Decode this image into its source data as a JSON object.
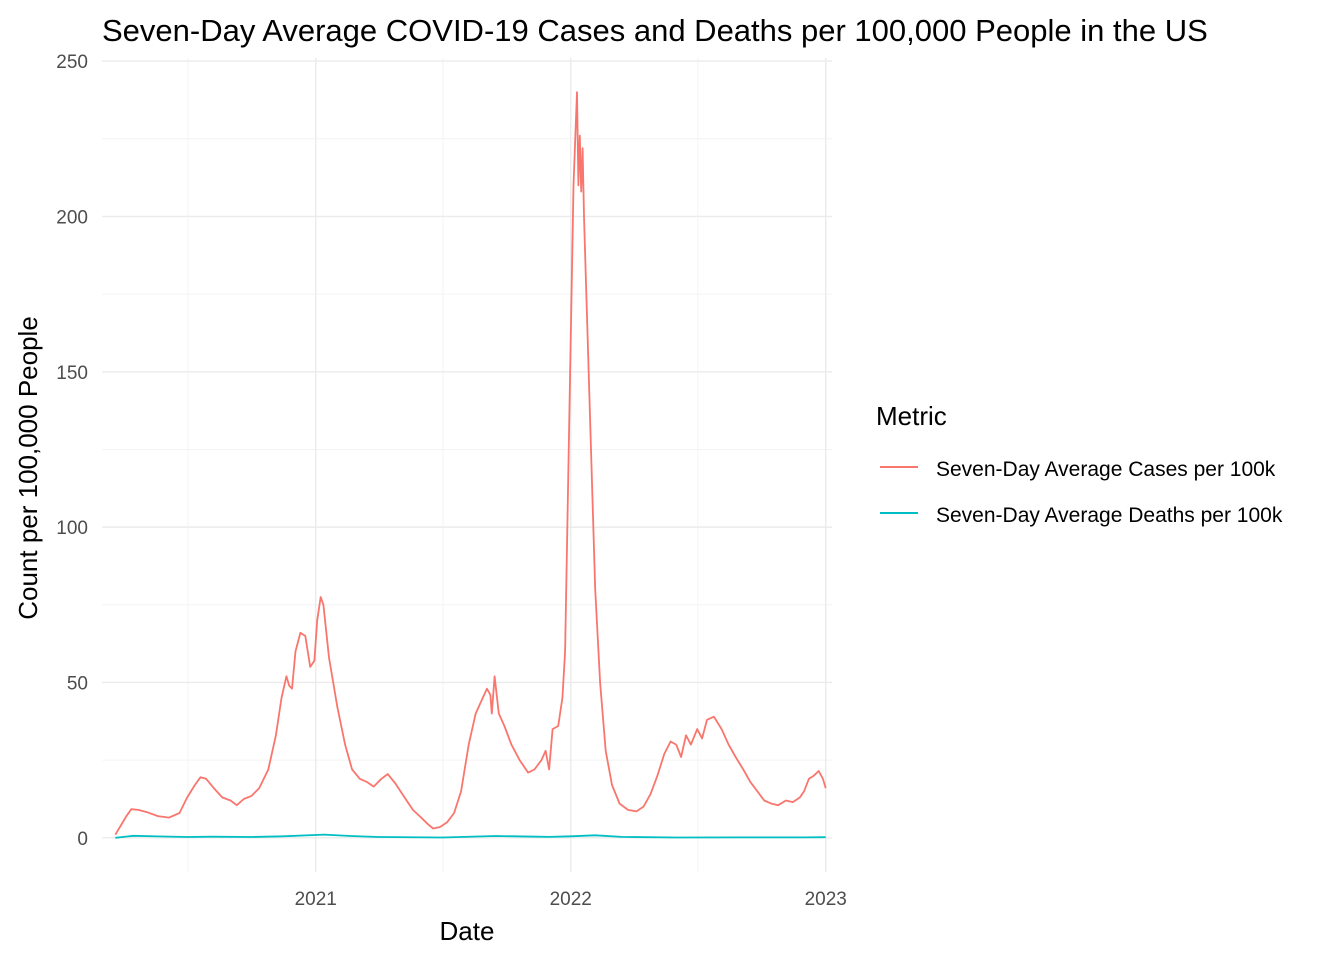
{
  "chart_data": {
    "type": "line",
    "title": "Seven-Day Average COVID-19 Cases and Deaths per 100,000 People in the US",
    "xlabel": "Date",
    "ylabel": "Count per 100,000 People",
    "x_ticks": [
      "2021",
      "2022",
      "2023"
    ],
    "y_ticks": [
      "0",
      "50",
      "100",
      "150",
      "200",
      "250"
    ],
    "xlim": [
      "2020-03-01",
      "2023-01-10"
    ],
    "ylim": [
      -11,
      251
    ],
    "grid": true,
    "legend": {
      "title": "Metric",
      "position": "right"
    },
    "series": [
      {
        "name": "Seven-Day Average Cases per 100k",
        "color": "#F8766D",
        "points": [
          [
            "2020-03-20",
            1
          ],
          [
            "2020-03-28",
            4
          ],
          [
            "2020-04-05",
            7
          ],
          [
            "2020-04-12",
            9.2
          ],
          [
            "2020-04-22",
            9
          ],
          [
            "2020-05-05",
            8.2
          ],
          [
            "2020-05-20",
            7
          ],
          [
            "2020-06-05",
            6.5
          ],
          [
            "2020-06-20",
            8
          ],
          [
            "2020-07-01",
            13
          ],
          [
            "2020-07-12",
            17
          ],
          [
            "2020-07-20",
            19.5
          ],
          [
            "2020-07-28",
            19
          ],
          [
            "2020-08-08",
            16
          ],
          [
            "2020-08-20",
            13
          ],
          [
            "2020-09-01",
            12
          ],
          [
            "2020-09-10",
            10.5
          ],
          [
            "2020-09-20",
            12.5
          ],
          [
            "2020-10-01",
            13.5
          ],
          [
            "2020-10-12",
            16
          ],
          [
            "2020-10-25",
            22
          ],
          [
            "2020-11-05",
            33
          ],
          [
            "2020-11-13",
            45
          ],
          [
            "2020-11-20",
            52
          ],
          [
            "2020-11-24",
            49
          ],
          [
            "2020-11-28",
            48
          ],
          [
            "2020-12-03",
            60
          ],
          [
            "2020-12-10",
            66
          ],
          [
            "2020-12-17",
            65
          ],
          [
            "2020-12-24",
            55
          ],
          [
            "2020-12-30",
            57
          ],
          [
            "2021-01-03",
            70
          ],
          [
            "2021-01-08",
            77.5
          ],
          [
            "2021-01-12",
            75
          ],
          [
            "2021-01-20",
            58
          ],
          [
            "2021-02-01",
            42
          ],
          [
            "2021-02-12",
            30
          ],
          [
            "2021-02-22",
            22
          ],
          [
            "2021-03-05",
            19
          ],
          [
            "2021-03-15",
            18
          ],
          [
            "2021-03-25",
            16.5
          ],
          [
            "2021-04-05",
            19
          ],
          [
            "2021-04-14",
            20.5
          ],
          [
            "2021-04-25",
            17.5
          ],
          [
            "2021-05-08",
            13
          ],
          [
            "2021-05-20",
            9
          ],
          [
            "2021-06-01",
            6.5
          ],
          [
            "2021-06-10",
            4.5
          ],
          [
            "2021-06-18",
            3
          ],
          [
            "2021-06-28",
            3.5
          ],
          [
            "2021-07-08",
            5
          ],
          [
            "2021-07-18",
            8
          ],
          [
            "2021-07-28",
            15
          ],
          [
            "2021-08-08",
            30
          ],
          [
            "2021-08-18",
            40
          ],
          [
            "2021-08-28",
            45
          ],
          [
            "2021-09-03",
            48
          ],
          [
            "2021-09-08",
            46
          ],
          [
            "2021-09-10",
            40
          ],
          [
            "2021-09-14",
            52
          ],
          [
            "2021-09-20",
            40
          ],
          [
            "2021-09-28",
            36
          ],
          [
            "2021-10-08",
            30
          ],
          [
            "2021-10-20",
            25
          ],
          [
            "2021-11-01",
            21
          ],
          [
            "2021-11-10",
            22
          ],
          [
            "2021-11-20",
            25
          ],
          [
            "2021-11-26",
            28
          ],
          [
            "2021-12-01",
            22
          ],
          [
            "2021-12-06",
            35
          ],
          [
            "2021-12-14",
            36
          ],
          [
            "2021-12-20",
            45
          ],
          [
            "2021-12-24",
            60
          ],
          [
            "2021-12-28",
            110
          ],
          [
            "2022-01-01",
            160
          ],
          [
            "2022-01-05",
            210
          ],
          [
            "2022-01-10",
            240
          ],
          [
            "2022-01-12",
            210
          ],
          [
            "2022-01-14",
            226
          ],
          [
            "2022-01-16",
            208
          ],
          [
            "2022-01-18",
            222
          ],
          [
            "2022-01-20",
            200
          ],
          [
            "2022-01-24",
            170
          ],
          [
            "2022-01-30",
            125
          ],
          [
            "2022-02-05",
            80
          ],
          [
            "2022-02-12",
            50
          ],
          [
            "2022-02-20",
            28
          ],
          [
            "2022-03-01",
            17
          ],
          [
            "2022-03-12",
            11
          ],
          [
            "2022-03-24",
            9
          ],
          [
            "2022-04-05",
            8.5
          ],
          [
            "2022-04-15",
            10
          ],
          [
            "2022-04-25",
            14
          ],
          [
            "2022-05-05",
            20
          ],
          [
            "2022-05-15",
            27
          ],
          [
            "2022-05-24",
            31
          ],
          [
            "2022-06-01",
            30
          ],
          [
            "2022-06-08",
            26
          ],
          [
            "2022-06-15",
            33
          ],
          [
            "2022-06-22",
            30
          ],
          [
            "2022-07-01",
            35
          ],
          [
            "2022-07-08",
            32
          ],
          [
            "2022-07-15",
            38
          ],
          [
            "2022-07-25",
            39
          ],
          [
            "2022-08-05",
            35
          ],
          [
            "2022-08-15",
            30
          ],
          [
            "2022-08-25",
            26
          ],
          [
            "2022-09-05",
            22
          ],
          [
            "2022-09-15",
            18
          ],
          [
            "2022-09-25",
            15
          ],
          [
            "2022-10-05",
            12
          ],
          [
            "2022-10-15",
            11
          ],
          [
            "2022-10-25",
            10.5
          ],
          [
            "2022-11-05",
            12
          ],
          [
            "2022-11-15",
            11.5
          ],
          [
            "2022-11-25",
            13
          ],
          [
            "2022-12-01",
            15
          ],
          [
            "2022-12-08",
            19
          ],
          [
            "2022-12-15",
            20
          ],
          [
            "2022-12-22",
            21.5
          ],
          [
            "2022-12-28",
            19
          ],
          [
            "2023-01-01",
            16
          ]
        ]
      },
      {
        "name": "Seven-Day Average Deaths per 100k",
        "color": "#00BFC4",
        "points": [
          [
            "2020-03-20",
            0
          ],
          [
            "2020-04-15",
            0.65
          ],
          [
            "2020-05-20",
            0.45
          ],
          [
            "2020-07-01",
            0.25
          ],
          [
            "2020-08-05",
            0.35
          ],
          [
            "2020-10-01",
            0.25
          ],
          [
            "2020-11-15",
            0.5
          ],
          [
            "2021-01-13",
            1.05
          ],
          [
            "2021-02-20",
            0.6
          ],
          [
            "2021-04-01",
            0.25
          ],
          [
            "2021-07-01",
            0.1
          ],
          [
            "2021-09-15",
            0.6
          ],
          [
            "2021-11-15",
            0.35
          ],
          [
            "2021-12-01",
            0.3
          ],
          [
            "2022-01-01",
            0.5
          ],
          [
            "2022-02-05",
            0.8
          ],
          [
            "2022-03-15",
            0.3
          ],
          [
            "2022-06-01",
            0.1
          ],
          [
            "2022-09-01",
            0.15
          ],
          [
            "2022-12-01",
            0.15
          ],
          [
            "2023-01-01",
            0.2
          ]
        ]
      }
    ]
  }
}
